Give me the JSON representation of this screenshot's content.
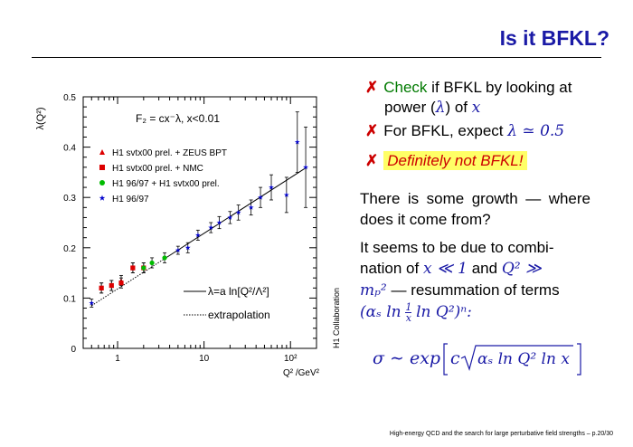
{
  "slide": {
    "title": "Is it BFKL?",
    "footer": "High-energy QCD and the search for large perturbative field strengths – p.20/30"
  },
  "bullets": [
    {
      "mark": "✗",
      "highlight": "Check",
      "text": " if BFKL by looking at",
      "text2": "power (",
      "sym": "λ",
      "text3": ") of ",
      "sym2": "x"
    },
    {
      "mark": "✗",
      "text": "For BFKL, expect ",
      "sym": "λ ≃ 0.5"
    },
    {
      "mark": "✗",
      "highlight": "Definitely not BFKL!"
    }
  ],
  "paragraphs": {
    "p1": "There is some growth — where does it come from?",
    "p2_a": "It seems to be due to combi-",
    "p2_b": "nation of",
    "p2_c": "x ≪ 1",
    "p2_d": "and",
    "p2_e": "Q² ≫",
    "p2_f": "mₚ²",
    "p2_g": "— resummation of terms",
    "p2_h": "(αₛ ln",
    "p2_i": "ln Q²)ⁿ:",
    "frac_num": "1",
    "frac_den": "x"
  },
  "formula": {
    "lhs": "σ ∼ exp",
    "c": "c",
    "radicand": "αₛ ln Q² ln x"
  },
  "plot": {
    "ylabel": "λ(Q²)",
    "xlabel": "Q² /GeV²",
    "collab": "H1 Collaboration",
    "fit_formula": "F₂ = cx⁻λ,  x<0.01",
    "legend": [
      {
        "label": "H1 svtx00 prel. + ZEUS BPT",
        "color": "#dd0000",
        "marker": "triangle"
      },
      {
        "label": "H1 svtx00 prel. + NMC",
        "color": "#dd0000",
        "marker": "square"
      },
      {
        "label": "H1 96/97 + H1 svtx00 prel.",
        "color": "#00bb00",
        "marker": "circle"
      },
      {
        "label": "H1 96/97",
        "color": "#0000cc",
        "marker": "star"
      }
    ],
    "line_legend": [
      {
        "label": "λ=a ln[Q²/Λ²]",
        "style": "solid"
      },
      {
        "label": "extrapolation",
        "style": "dotted"
      }
    ],
    "y_ticks": [
      "0",
      "0.1",
      "0.2",
      "0.3",
      "0.4",
      "0.5"
    ],
    "x_ticks": [
      "1",
      "10",
      "10²"
    ]
  },
  "chart_data": {
    "type": "scatter",
    "x_scale": "log",
    "xlim": [
      0.4,
      200
    ],
    "ylim": [
      0,
      0.5
    ],
    "xlabel": "Q² /GeV²",
    "ylabel": "λ(Q²)",
    "series": [
      {
        "name": "H1 svtx00 prel. + ZEUS BPT",
        "color": "#dd0000",
        "marker": "triangle",
        "x": [
          0.65,
          0.85,
          1.1,
          1.5
        ],
        "y": [
          0.12,
          0.125,
          0.135,
          0.16
        ],
        "err": [
          0.01,
          0.01,
          0.01,
          0.01
        ]
      },
      {
        "name": "H1 svtx00 prel. + NMC",
        "color": "#dd0000",
        "marker": "square",
        "x": [
          0.65,
          0.85,
          1.1,
          1.5,
          2.0
        ],
        "y": [
          0.12,
          0.125,
          0.13,
          0.16,
          0.16
        ],
        "err": [
          0.01,
          0.01,
          0.01,
          0.01,
          0.01
        ]
      },
      {
        "name": "H1 96/97 + H1 svtx00 prel.",
        "color": "#00bb00",
        "marker": "circle",
        "x": [
          2.0,
          2.5,
          3.5
        ],
        "y": [
          0.16,
          0.17,
          0.18
        ],
        "err": [
          0.01,
          0.01,
          0.01
        ]
      },
      {
        "name": "H1 96/97",
        "color": "#0000cc",
        "marker": "star",
        "x": [
          0.5,
          5,
          6.5,
          8.5,
          12,
          15,
          20,
          25,
          35,
          45,
          60,
          90,
          120,
          150
        ],
        "y": [
          0.09,
          0.195,
          0.2,
          0.225,
          0.24,
          0.25,
          0.26,
          0.27,
          0.28,
          0.3,
          0.32,
          0.305,
          0.41,
          0.36
        ],
        "err": [
          0.008,
          0.008,
          0.01,
          0.01,
          0.01,
          0.012,
          0.012,
          0.015,
          0.015,
          0.02,
          0.025,
          0.035,
          0.06,
          0.08
        ]
      }
    ],
    "fit": {
      "a": 0.048,
      "lambda_qcd": 0.292,
      "x_from": 3.5,
      "x_to": 150
    },
    "extrapolation": {
      "x_from": 0.5,
      "x_to": 3.5
    }
  }
}
